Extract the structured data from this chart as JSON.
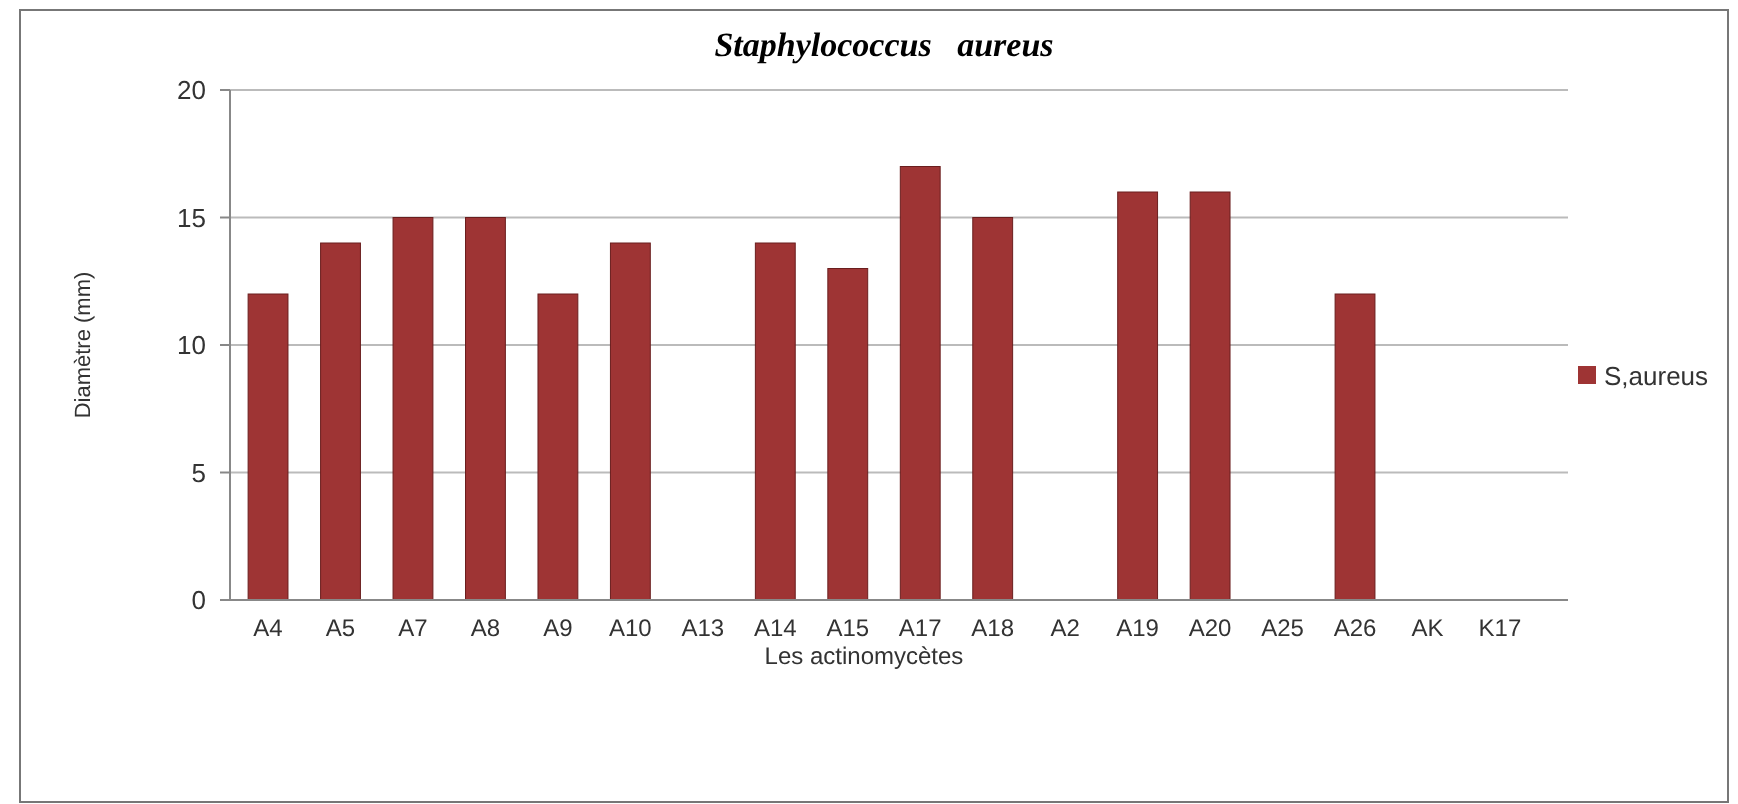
{
  "chart_data": {
    "type": "bar",
    "title": "Staphylococcus   aureus",
    "xlabel": "Les actinomycètes",
    "ylabel": "Diamètre (mm)",
    "categories": [
      "A4",
      "A5",
      "A7",
      "A8",
      "A9",
      "A10",
      "A13",
      "A14",
      "A15",
      "A17",
      "A18",
      "A2",
      "A19",
      "A20",
      "A25",
      "A26",
      "AK",
      "K17"
    ],
    "series": [
      {
        "name": "S,aureus",
        "color": "#9e3434",
        "values": [
          12,
          14,
          15,
          15,
          12,
          14,
          0,
          14,
          13,
          17,
          15,
          0,
          16,
          16,
          0,
          12,
          0,
          0
        ]
      }
    ],
    "ylim": [
      0,
      20
    ],
    "yticks": [
      0,
      5,
      10,
      15,
      20
    ],
    "grid": "y",
    "legend": "right"
  }
}
